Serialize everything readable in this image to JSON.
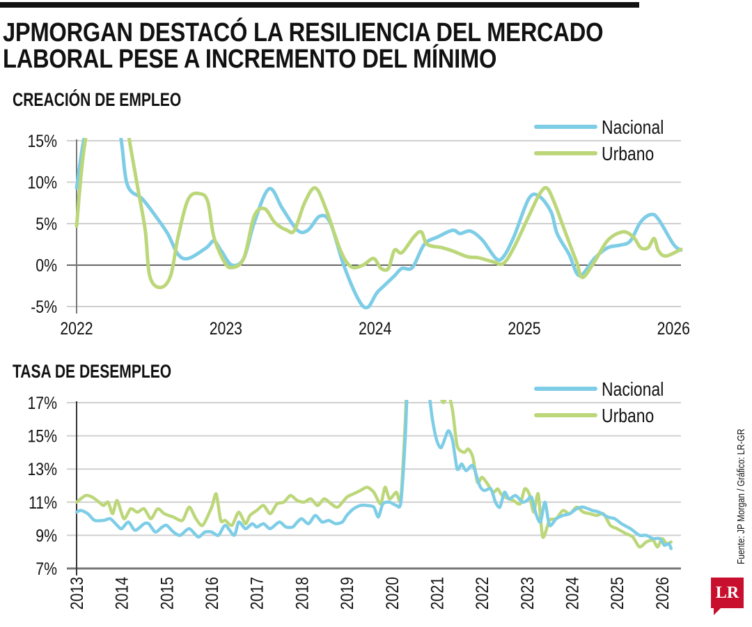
{
  "title_lines": [
    "JPMORGAN DESTACÓ LA RESILIENCIA DEL MERCADO",
    "LABORAL PESE A INCREMENTO DEL MÍNIMO"
  ],
  "source": "Fuente: JP Morgan / Gráfico: LR-GR",
  "logo": "LR",
  "colors": {
    "nacional": "#7ecde6",
    "urbano": "#bcd77a"
  },
  "chart_data": [
    {
      "type": "line",
      "title": "CREACIÓN DE EMPLEO",
      "ylim": [
        -5,
        15
      ],
      "xlim": [
        2022,
        2026.1
      ],
      "yticks": [
        15,
        10,
        5,
        0,
        -5
      ],
      "ytick_labels": [
        "15%",
        "10%",
        "5%",
        "0%",
        "-5%"
      ],
      "xticks": [
        2022,
        2023,
        2024,
        2025,
        2026
      ],
      "xtick_labels": [
        "2022",
        "2023",
        "2024",
        "2025",
        "2026"
      ],
      "grid": true,
      "legend": "top-right",
      "series": [
        {
          "name": "Nacional",
          "color": "#7ecde6",
          "x": [
            2022.0,
            2022.07,
            2022.19,
            2022.29,
            2022.34,
            2022.44,
            2022.53,
            2022.61,
            2022.68,
            2022.75,
            2022.87,
            2022.92,
            2022.97,
            2023.04,
            2023.12,
            2023.19,
            2023.29,
            2023.38,
            2023.48,
            2023.55,
            2023.63,
            2023.7,
            2023.79,
            2023.89,
            2023.95,
            2024.01,
            2024.06,
            2024.13,
            2024.18,
            2024.25,
            2024.33,
            2024.42,
            2024.52,
            2024.57,
            2024.64,
            2024.72,
            2024.81,
            2024.86,
            2024.93,
            2025.03,
            2025.1,
            2025.18,
            2025.22,
            2025.3,
            2025.37,
            2025.47,
            2025.56,
            2025.64,
            2025.71,
            2025.78,
            2025.85,
            2025.9,
            2026.0,
            2026.05
          ],
          "y": [
            9.3,
            17,
            22,
            16,
            9.7,
            8.0,
            5.9,
            3.8,
            1.3,
            0.8,
            2.1,
            2.9,
            1.7,
            0.0,
            0.8,
            5.1,
            9.2,
            6.8,
            4.2,
            4.2,
            5.9,
            5.1,
            0.0,
            -4.2,
            -5.1,
            -3.4,
            -2.5,
            -1.3,
            -0.4,
            -0.3,
            2.5,
            3.4,
            4.2,
            3.8,
            4.1,
            3.0,
            0.8,
            1.0,
            3.4,
            8.0,
            8.3,
            6.4,
            3.8,
            1.3,
            -1.3,
            0.8,
            2.1,
            2.4,
            2.9,
            5.2,
            6.1,
            5.5,
            2.5,
            1.8
          ]
        },
        {
          "name": "Urbano",
          "color": "#bcd77a",
          "x": [
            2022.0,
            2022.05,
            2022.15,
            2022.27,
            2022.36,
            2022.41,
            2022.46,
            2022.49,
            2022.56,
            2022.63,
            2022.68,
            2022.75,
            2022.83,
            2022.88,
            2022.92,
            2022.99,
            2023.04,
            2023.12,
            2023.19,
            2023.26,
            2023.33,
            2023.41,
            2023.46,
            2023.53,
            2023.6,
            2023.67,
            2023.77,
            2023.84,
            2023.92,
            2023.99,
            2024.04,
            2024.09,
            2024.13,
            2024.18,
            2024.26,
            2024.31,
            2024.35,
            2024.45,
            2024.52,
            2024.62,
            2024.69,
            2024.79,
            2024.86,
            2024.93,
            2025.03,
            2025.1,
            2025.15,
            2025.2,
            2025.27,
            2025.35,
            2025.39,
            2025.47,
            2025.56,
            2025.66,
            2025.73,
            2025.78,
            2025.83,
            2025.87,
            2025.9,
            2025.95,
            2026.05
          ],
          "y": [
            4.7,
            14,
            24,
            24,
            14.4,
            9.3,
            4.2,
            -1.3,
            -2.7,
            -1.3,
            3.4,
            8.0,
            8.6,
            7.6,
            3.4,
            0.4,
            -0.3,
            0.8,
            5.9,
            6.8,
            5.1,
            4.2,
            4.2,
            7.6,
            9.3,
            6.8,
            1.7,
            -0.2,
            0.0,
            0.8,
            -0.4,
            -0.4,
            1.8,
            1.5,
            3.4,
            4.0,
            2.5,
            2.1,
            1.7,
            1.0,
            0.9,
            0.4,
            0.2,
            2.1,
            5.9,
            8.5,
            9.3,
            7.6,
            4.2,
            0.4,
            -1.5,
            0.4,
            3.0,
            4.0,
            3.4,
            2.1,
            2.1,
            3.2,
            1.7,
            1.1,
            1.9
          ]
        }
      ]
    },
    {
      "type": "line",
      "title": "TASA DE DESEMPLEO",
      "ylim": [
        7,
        17
      ],
      "xlim": [
        2013,
        2026.4
      ],
      "yticks": [
        17,
        15,
        13,
        11,
        9,
        7
      ],
      "ytick_labels": [
        "17%",
        "15%",
        "13%",
        "11%",
        "9%",
        "7%"
      ],
      "xticks": [
        2013,
        2014,
        2015,
        2016,
        2017,
        2018,
        2019,
        2020,
        2021,
        2022,
        2023,
        2024,
        2025,
        2026
      ],
      "xtick_labels": [
        "2013",
        "2014",
        "2015",
        "2016",
        "2017",
        "2018",
        "2019",
        "2020",
        "2021",
        "2022",
        "2023",
        "2024",
        "2025",
        "2026"
      ],
      "grid": true,
      "legend": "top-right",
      "series": [
        {
          "name": "Nacional",
          "color": "#7ecde6",
          "x": [
            2013.0,
            2013.1,
            2013.25,
            2013.4,
            2013.6,
            2013.75,
            2013.9,
            2014.0,
            2014.15,
            2014.3,
            2014.5,
            2014.6,
            2014.75,
            2014.9,
            2015.0,
            2015.15,
            2015.3,
            2015.5,
            2015.7,
            2015.85,
            2016.0,
            2016.15,
            2016.3,
            2016.5,
            2016.6,
            2016.75,
            2016.9,
            2017.0,
            2017.15,
            2017.3,
            2017.5,
            2017.65,
            2017.8,
            2017.9,
            2018.0,
            2018.15,
            2018.3,
            2018.45,
            2018.6,
            2018.75,
            2018.9,
            2019.0,
            2019.15,
            2019.3,
            2019.45,
            2019.6,
            2019.7,
            2019.8,
            2019.95,
            2020.1,
            2020.2,
            2020.3,
            2020.4,
            2020.6,
            2020.8,
            2020.9,
            2021.0,
            2021.1,
            2021.25,
            2021.35,
            2021.45,
            2021.55,
            2021.65,
            2021.8,
            2021.95,
            2022.05,
            2022.2,
            2022.3,
            2022.4,
            2022.5,
            2022.6,
            2022.75,
            2022.9,
            2023.0,
            2023.1,
            2023.2,
            2023.3,
            2023.4,
            2023.5,
            2023.65,
            2023.8,
            2023.95,
            2024.1,
            2024.25,
            2024.45,
            2024.6,
            2024.8,
            2024.95,
            2025.1,
            2025.3,
            2025.5,
            2025.65,
            2025.8,
            2025.95,
            2026.05,
            2026.15,
            2026.2
          ],
          "y": [
            10.4,
            10.5,
            10.3,
            9.9,
            9.9,
            10.0,
            9.6,
            9.4,
            9.8,
            9.3,
            9.7,
            9.7,
            9.2,
            9.5,
            9.6,
            9.2,
            9.0,
            9.4,
            8.9,
            9.2,
            9.2,
            9.0,
            9.6,
            9.0,
            9.8,
            9.4,
            9.7,
            9.5,
            9.7,
            9.4,
            9.8,
            9.5,
            9.5,
            9.8,
            10.0,
            9.7,
            10.2,
            9.8,
            9.9,
            9.7,
            9.8,
            10.2,
            10.6,
            10.8,
            10.8,
            10.7,
            10.1,
            10.9,
            11.0,
            10.8,
            11.0,
            15,
            21,
            20,
            18,
            16,
            14.7,
            14.3,
            15.3,
            14.7,
            13.0,
            13.3,
            12.9,
            13.2,
            12.0,
            11.7,
            11.8,
            11.0,
            10.7,
            11.6,
            11.2,
            11.4,
            11.0,
            11.1,
            11.3,
            10.3,
            9.8,
            11.0,
            9.6,
            10.0,
            10.2,
            10.3,
            10.6,
            10.7,
            10.5,
            10.4,
            10.1,
            10.0,
            9.7,
            9.4,
            9.0,
            9.0,
            8.8,
            8.8,
            8.4,
            8.5,
            8.2
          ]
        },
        {
          "name": "Urbano",
          "color": "#bcd77a",
          "x": [
            2013.0,
            2013.2,
            2013.35,
            2013.5,
            2013.6,
            2013.7,
            2013.8,
            2013.9,
            2014.05,
            2014.2,
            2014.35,
            2014.5,
            2014.65,
            2014.8,
            2014.95,
            2015.15,
            2015.35,
            2015.5,
            2015.65,
            2015.8,
            2016.0,
            2016.1,
            2016.2,
            2016.3,
            2016.45,
            2016.6,
            2016.75,
            2016.85,
            2017.0,
            2017.15,
            2017.3,
            2017.45,
            2017.6,
            2017.75,
            2017.9,
            2018.05,
            2018.2,
            2018.35,
            2018.5,
            2018.65,
            2018.8,
            2019.0,
            2019.15,
            2019.3,
            2019.45,
            2019.6,
            2019.75,
            2019.85,
            2019.95,
            2020.1,
            2020.2,
            2020.3,
            2020.4,
            2020.6,
            2020.9,
            2021.05,
            2021.15,
            2021.25,
            2021.35,
            2021.45,
            2021.6,
            2021.7,
            2021.8,
            2021.9,
            2022.0,
            2022.1,
            2022.25,
            2022.35,
            2022.45,
            2022.6,
            2022.7,
            2022.85,
            2022.95,
            2023.05,
            2023.15,
            2023.25,
            2023.35,
            2023.5,
            2023.65,
            2023.8,
            2023.95,
            2024.1,
            2024.25,
            2024.4,
            2024.55,
            2024.7,
            2024.85,
            2025.0,
            2025.2,
            2025.35,
            2025.5,
            2025.65,
            2025.8,
            2025.9,
            2026.0,
            2026.1,
            2026.2
          ],
          "y": [
            11.0,
            11.4,
            11.3,
            11.0,
            10.8,
            11.0,
            10.3,
            11.1,
            10.0,
            10.6,
            10.4,
            10.6,
            10.0,
            10.6,
            10.3,
            10.1,
            9.9,
            10.7,
            10.0,
            9.6,
            10.7,
            11.5,
            9.9,
            9.9,
            9.6,
            10.4,
            9.7,
            10.2,
            10.5,
            10.8,
            10.3,
            10.9,
            11.0,
            11.4,
            11.1,
            11.0,
            11.2,
            10.8,
            11.2,
            10.9,
            10.7,
            11.3,
            11.5,
            11.7,
            11.9,
            11.6,
            10.9,
            11.9,
            11.2,
            11.6,
            11.2,
            16,
            22,
            21,
            18,
            17.5,
            17.0,
            17.6,
            16.5,
            14.4,
            14.0,
            14.2,
            13.7,
            12.2,
            12.5,
            12.2,
            11.6,
            11.8,
            11.4,
            11.2,
            11.1,
            10.9,
            11.8,
            11.5,
            10.4,
            11.5,
            8.9,
            9.9,
            10.0,
            10.5,
            10.3,
            10.7,
            10.4,
            10.3,
            10.2,
            10.3,
            9.6,
            9.4,
            9.1,
            8.9,
            8.3,
            8.6,
            8.7,
            8.3,
            8.8,
            8.5,
            8.6
          ]
        }
      ]
    }
  ]
}
